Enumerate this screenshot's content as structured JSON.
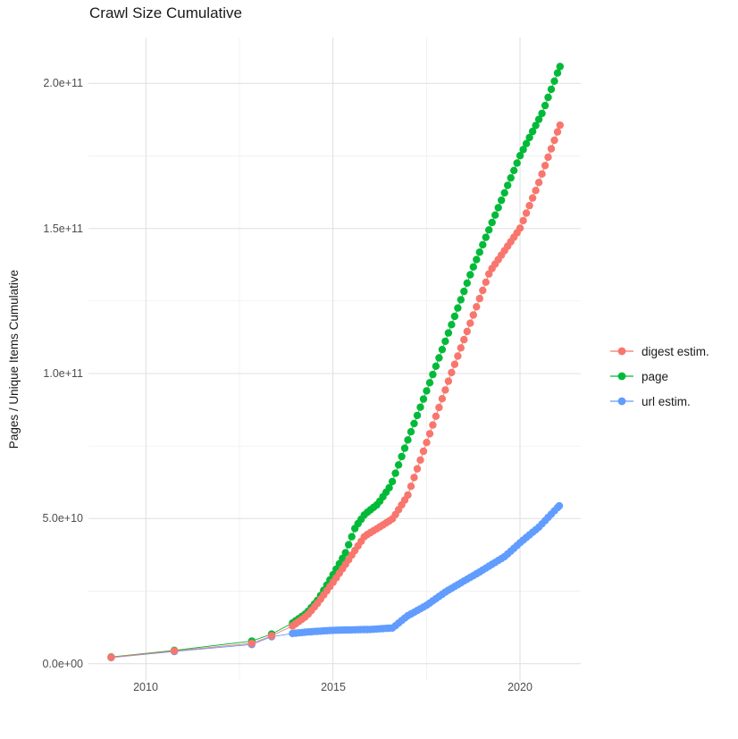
{
  "chart_data": {
    "type": "scatter",
    "title": "Crawl Size Cumulative",
    "xlabel": "",
    "ylabel": "Pages / Unique Items Cumulative",
    "legend_position": "right",
    "grid": "major+minor",
    "colors": {
      "grid_major": "#e2e2e2",
      "grid_minor": "#ededed",
      "tick_text": "#4d4d4d",
      "title_text": "#1a1a1a"
    },
    "x_axis": {
      "tick_labels": [
        "2010",
        "2015",
        "2020"
      ],
      "tick_values": [
        2010,
        2015,
        2020
      ],
      "minor_values": [
        2012.5,
        2017.5
      ],
      "range": [
        2008.46,
        2021.62
      ]
    },
    "y_axis": {
      "tick_labels": [
        "0.0e+00",
        "5.0e+10",
        "1.0e+11",
        "1.5e+11",
        "2.0e+11"
      ],
      "tick_values_e9": [
        0,
        50,
        100,
        150,
        200
      ],
      "minor_values_e9": [
        25,
        75,
        125,
        175
      ],
      "range_e9": [
        -5.9,
        215.8
      ]
    },
    "sampling": {
      "dense_from": 2013.92,
      "step_years": 0.0833333
    },
    "series": [
      {
        "name": "digest estim.",
        "color": "#F8766D",
        "end": 2021.07,
        "anchors_year_value_e9": [
          [
            2009.07,
            2.2
          ],
          [
            2010.76,
            4.4
          ],
          [
            2012.83,
            7.0
          ],
          [
            2013.36,
            9.6
          ],
          [
            2013.92,
            13
          ],
          [
            2014.3,
            16.5
          ],
          [
            2014.6,
            21
          ],
          [
            2015.0,
            28
          ],
          [
            2015.35,
            34.5
          ],
          [
            2015.85,
            44
          ],
          [
            2016.3,
            47.5
          ],
          [
            2016.6,
            50
          ],
          [
            2017.0,
            58
          ],
          [
            2018.16,
            100
          ],
          [
            2019.19,
            135
          ],
          [
            2020.0,
            150
          ],
          [
            2020.45,
            164
          ],
          [
            2021.07,
            185.6
          ]
        ]
      },
      {
        "name": "page",
        "color": "#00BA38",
        "end": 2021.07,
        "anchors_year_value_e9": [
          [
            2009.07,
            2.3
          ],
          [
            2010.76,
            4.6
          ],
          [
            2012.83,
            7.8
          ],
          [
            2013.36,
            10.2
          ],
          [
            2013.92,
            14
          ],
          [
            2014.3,
            17.5
          ],
          [
            2014.6,
            22
          ],
          [
            2015.0,
            30.6
          ],
          [
            2015.33,
            38
          ],
          [
            2015.6,
            47
          ],
          [
            2015.85,
            51.5
          ],
          [
            2016.2,
            55
          ],
          [
            2016.55,
            61.5
          ],
          [
            2017.0,
            77
          ],
          [
            2017.68,
            100
          ],
          [
            2018.71,
            135.4
          ],
          [
            2019.35,
            155
          ],
          [
            2020.0,
            175
          ],
          [
            2020.6,
            190
          ],
          [
            2021.07,
            205.8
          ]
        ]
      },
      {
        "name": "url estim.",
        "color": "#619CFF",
        "end": 2021.05,
        "anchors_year_value_e9": [
          [
            2009.07,
            2.1
          ],
          [
            2010.76,
            4.2
          ],
          [
            2012.83,
            6.6
          ],
          [
            2013.36,
            9.3
          ],
          [
            2013.92,
            10.4
          ],
          [
            2014.3,
            10.9
          ],
          [
            2015.0,
            11.5
          ],
          [
            2016.0,
            11.8
          ],
          [
            2016.6,
            12.3
          ],
          [
            2016.8,
            14.5
          ],
          [
            2017.0,
            16.5
          ],
          [
            2017.5,
            20.1
          ],
          [
            2018.04,
            25
          ],
          [
            2018.92,
            31.6
          ],
          [
            2019.6,
            37
          ],
          [
            2020.03,
            42
          ],
          [
            2020.5,
            47
          ],
          [
            2021.05,
            54.4
          ]
        ]
      }
    ]
  }
}
